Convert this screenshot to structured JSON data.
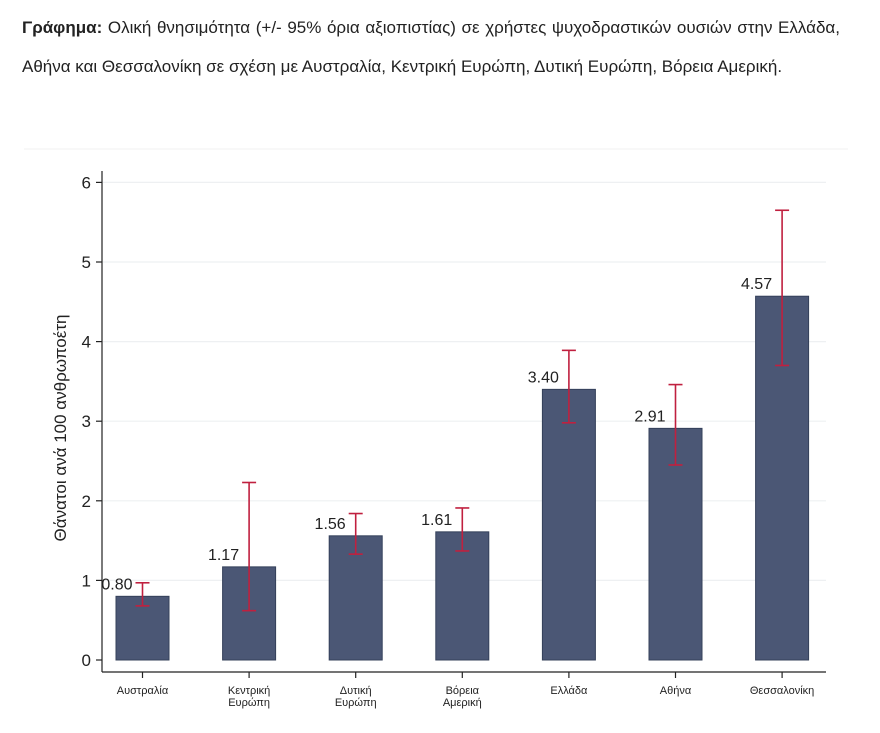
{
  "caption": {
    "label": "Γράφημα:",
    "text": "Ολική θνησιμότητα (+/- 95% όρια αξιοπιστίας) σε χρήστες ψυχοδραστικών ουσιών στην Ελλάδα, Αθήνα και Θεσσαλονίκη σε σχέση με Αυστραλία, Κεντρική Ευρώπη, Δυτική Ευρώπη, Βόρεια Αμερική."
  },
  "chart_data": {
    "type": "bar",
    "title": "",
    "xlabel": "",
    "ylabel": "Θάνατοι ανά 100 ανθρωποέτη",
    "ylim": [
      0,
      6
    ],
    "yticks": [
      "0",
      "1",
      "2",
      "3",
      "4",
      "5",
      "6"
    ],
    "grid": true,
    "categories": [
      [
        "Αυστραλία"
      ],
      [
        "Κεντρική",
        "Ευρώπη"
      ],
      [
        "Δυτική",
        "Ευρώπη"
      ],
      [
        "Βόρεια",
        "Αμερική"
      ],
      [
        "Ελλάδα"
      ],
      [
        "Αθήνα"
      ],
      [
        "Θεσσαλονίκη"
      ]
    ],
    "values": [
      0.8,
      1.17,
      1.56,
      1.61,
      3.4,
      2.91,
      4.57
    ],
    "labels": [
      "0.80",
      "1.17",
      "1.56",
      "1.61",
      "3.40",
      "2.91",
      "4.57"
    ],
    "ci_lower": [
      0.68,
      0.62,
      1.33,
      1.37,
      2.98,
      2.45,
      3.7
    ],
    "ci_upper": [
      0.97,
      2.23,
      1.84,
      1.91,
      3.89,
      3.46,
      5.65
    ],
    "bar_color": "#4b5775",
    "error_color": "#c0203f",
    "grid_color": "#eef0f2"
  }
}
